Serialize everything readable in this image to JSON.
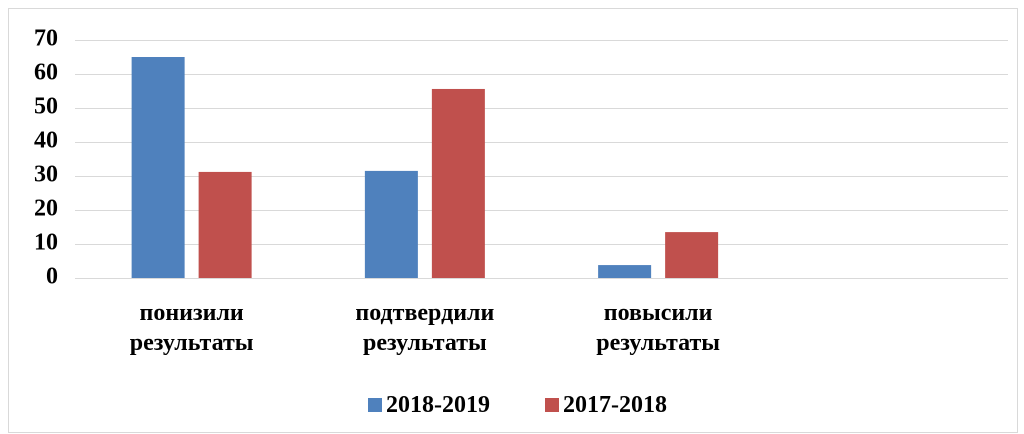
{
  "chart_data": {
    "type": "bar",
    "categories": [
      "понизили результаты",
      "подтвердили результаты",
      "повысили результаты",
      null
    ],
    "series": [
      {
        "name": "2018-2019",
        "color": "#4f81bd",
        "values": [
          65,
          31.5,
          3.8,
          null
        ]
      },
      {
        "name": "2017-2018",
        "color": "#c0504d",
        "values": [
          31.2,
          55.6,
          13.5,
          null
        ]
      }
    ],
    "ylim": [
      0,
      70
    ],
    "yticks": [
      0,
      10,
      20,
      30,
      40,
      50,
      60,
      70
    ],
    "grid": true,
    "legend": "bottom"
  }
}
